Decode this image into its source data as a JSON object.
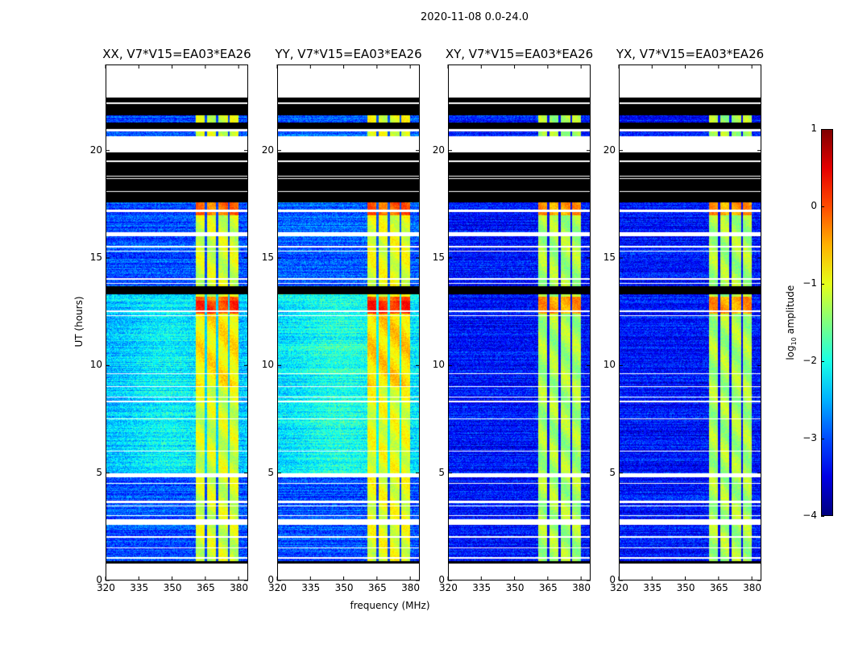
{
  "figure": {
    "suptitle": "2020-11-08 0.0-24.0",
    "xlabel": "frequency (MHz)",
    "ylabel": "UT (hours)",
    "colorbar_label_prefix": "log",
    "colorbar_label_sub": "10",
    "colorbar_label_suffix": " amplitude"
  },
  "chart_data": {
    "type": "heatmap",
    "title": "2020-11-08 0.0-24.0",
    "xlabel": "frequency (MHz)",
    "ylabel": "UT (hours)",
    "xlim": [
      320,
      384.3
    ],
    "ylim": [
      0,
      24
    ],
    "xticks": [
      320,
      335,
      350,
      365,
      380
    ],
    "yticks": [
      0,
      5,
      10,
      15,
      20
    ],
    "colormap": "jet",
    "colorbar": {
      "label": "log10 amplitude",
      "range": [
        -4,
        1
      ],
      "ticks": [
        -4,
        -3,
        -2,
        -1,
        0,
        1
      ]
    },
    "panels": [
      {
        "title": "XX, V7*V15=EA03*EA26",
        "background_mid": -2.3,
        "background_top": -3.0,
        "background_low": -3.0,
        "band_level": -1.1
      },
      {
        "title": "YY, V7*V15=EA03*EA26",
        "background_mid": -2.1,
        "background_top": -2.9,
        "background_low": -3.0,
        "band_level": -1.0
      },
      {
        "title": "XY, V7*V15=EA03*EA26",
        "background_mid": -3.3,
        "background_top": -3.3,
        "background_low": -3.3,
        "band_level": -1.3
      },
      {
        "title": "YX, V7*V15=EA03*EA26",
        "background_mid": -3.3,
        "background_top": -3.3,
        "background_low": -3.3,
        "band_level": -1.3
      }
    ],
    "rfi_band_mhz": [
      360.6,
      380.1
    ],
    "rfi_band_dividers_mhz": [
      365.3,
      370.4,
      375.5
    ],
    "hot_hours": [
      [
        17.0,
        17.6
      ],
      [
        12.4,
        13.2
      ]
    ],
    "flagged_white_hours": [
      [
        22.47,
        24.0
      ],
      [
        20.9,
        21.0
      ],
      [
        19.9,
        20.65
      ],
      [
        17.15,
        17.25
      ],
      [
        16.0,
        16.2
      ],
      [
        15.5,
        15.55
      ],
      [
        15.3,
        15.35
      ],
      [
        14.0,
        14.05
      ],
      [
        13.8,
        13.85
      ],
      [
        12.5,
        12.55
      ],
      [
        12.3,
        12.35
      ],
      [
        9.6,
        9.65
      ],
      [
        9.0,
        9.05
      ],
      [
        8.5,
        8.55
      ],
      [
        8.3,
        8.35
      ],
      [
        7.5,
        7.55
      ],
      [
        6.0,
        6.05
      ],
      [
        4.8,
        5.0
      ],
      [
        4.5,
        4.55
      ],
      [
        3.6,
        3.7
      ],
      [
        3.45,
        3.5
      ],
      [
        3.0,
        3.05
      ],
      [
        2.6,
        2.85
      ],
      [
        2.0,
        2.05
      ],
      [
        1.5,
        1.55
      ],
      [
        1.0,
        1.1
      ],
      [
        0.0,
        0.8
      ]
    ],
    "flagged_black_hours": [
      [
        21.65,
        22.47
      ],
      [
        21.0,
        21.3
      ],
      [
        17.6,
        19.9
      ],
      [
        13.3,
        13.7
      ],
      [
        0.8,
        0.9
      ]
    ],
    "black_gap_lines_hours": [
      22.2,
      19.5,
      18.8,
      18.7,
      18.1
    ]
  }
}
